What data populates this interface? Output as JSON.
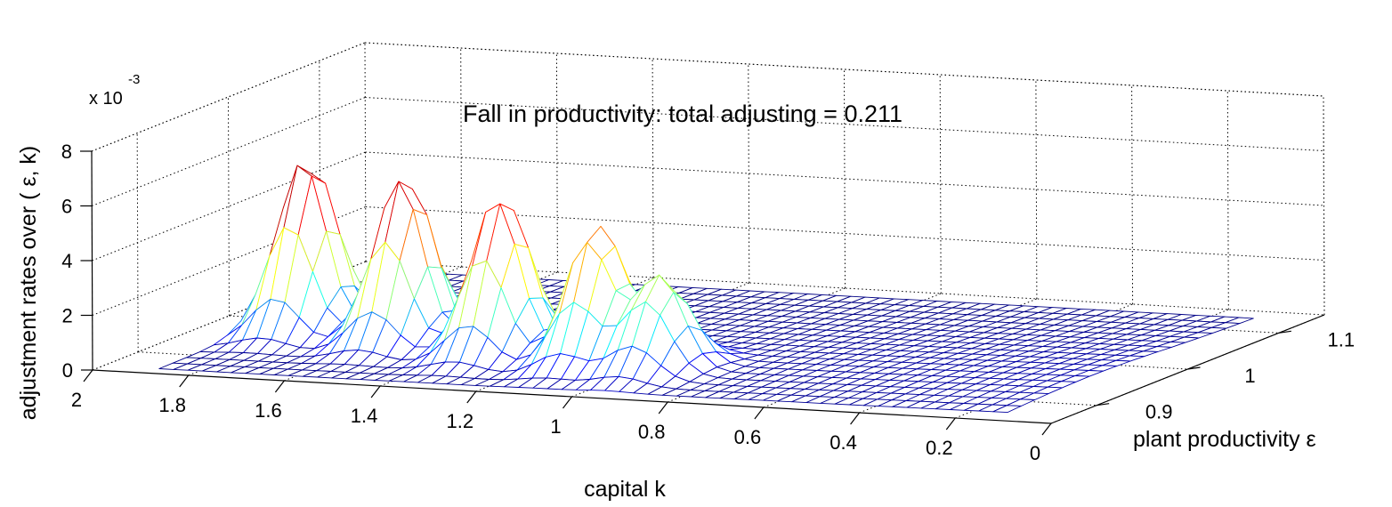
{
  "chart_data": {
    "type": "surface",
    "title": "Fall in productivity: total adjusting = 0.211",
    "xlabel": "capital k",
    "ylabel": "plant productivity  ε",
    "zlabel": "adjustment rates over ( ε, k)",
    "z_multiplier": "x 10",
    "z_multiplier_exponent": "-3",
    "xlim": [
      0,
      2
    ],
    "ylim": [
      0.85,
      1.15
    ],
    "zlim": [
      0,
      8
    ],
    "x_ticks": [
      "0",
      "0.2",
      "0.4",
      "0.6",
      "0.8",
      "1",
      "1.2",
      "1.4",
      "1.6",
      "1.8",
      "2"
    ],
    "x_tick_values": [
      0,
      0.2,
      0.4,
      0.6,
      0.8,
      1.0,
      1.2,
      1.4,
      1.6,
      1.8,
      2.0
    ],
    "y_ticks": [
      "0.9",
      "1",
      "1.1"
    ],
    "y_tick_values": [
      0.9,
      1.0,
      1.1
    ],
    "z_ticks": [
      "0",
      "2",
      "4",
      "6",
      "8"
    ],
    "z_tick_values": [
      0,
      2,
      4,
      6,
      8
    ],
    "grid": true,
    "colormap": "jet",
    "ridges": [
      {
        "k": 1.78,
        "eps": 0.97,
        "peak": 6.4
      },
      {
        "k": 1.55,
        "eps": 0.955,
        "peak": 6.1
      },
      {
        "k": 1.32,
        "eps": 0.94,
        "peak": 5.8
      },
      {
        "k": 1.1,
        "eps": 0.93,
        "peak": 5.0
      },
      {
        "k": 0.95,
        "eps": 0.92,
        "peak": 3.4
      }
    ]
  }
}
